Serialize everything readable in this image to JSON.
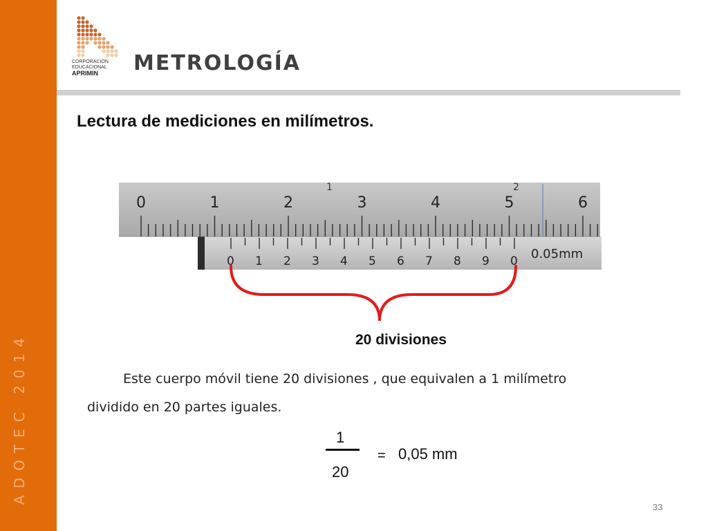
{
  "sidebar": {
    "vertical_text": "ADOTEC 2014"
  },
  "logo": {
    "line1": "CORPORACION",
    "line2": "EDUCACIONAL",
    "brand": "APRIMIN"
  },
  "header": {
    "title": "METROLOGÍA"
  },
  "slide": {
    "heading": "Lectura de mediciones en milímetros."
  },
  "caliper": {
    "main_scale_labels": [
      "0",
      "1",
      "2",
      "3",
      "4",
      "5",
      "6"
    ],
    "main_scale_top_labels": [
      "1",
      "2"
    ],
    "vernier_labels": [
      "0",
      "1",
      "2",
      "3",
      "4",
      "5",
      "6",
      "7",
      "8",
      "9",
      "0"
    ],
    "vernier_unit": "0.05mm",
    "brace_color": "#e31b1b"
  },
  "divisions_label": "20 divisiones",
  "body": {
    "line1": "Este cuerpo móvil tiene 20 divisiones , que equivalen a 1 milímetro",
    "line2": "dividido en 20 partes iguales."
  },
  "formula": {
    "numerator": "1",
    "denominator": "20",
    "equals": "=",
    "result": "0,05 mm"
  },
  "page_number": "33",
  "colors": {
    "sidebar": "#e36c0a",
    "accent_red": "#e31b1b"
  }
}
